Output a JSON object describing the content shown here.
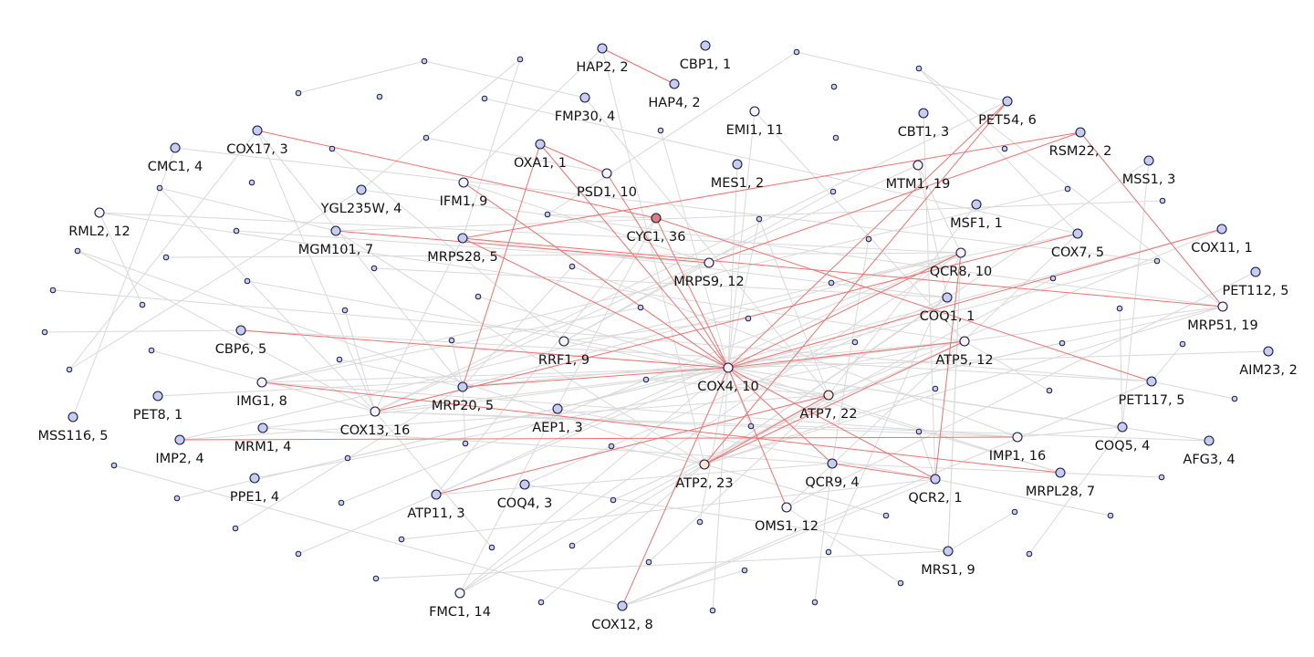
{
  "colors": {
    "node_fill": "#c5cdf2",
    "node_fill_light": "#f4f3fb",
    "node_fill_peach": "#fbe6d8",
    "node_fill_hub": "#d98080",
    "node_stroke": "#1a1a3a",
    "edge_highlight": "#f07070",
    "edge_default": "#d9d9d9"
  },
  "nodes": [
    {
      "id": "HAP2",
      "label": "HAP2, 2",
      "fill": "node_fill"
    },
    {
      "id": "CBP1",
      "label": "CBP1, 1",
      "fill": "node_fill"
    },
    {
      "id": "HAP4",
      "label": "HAP4, 2",
      "fill": "node_fill"
    },
    {
      "id": "FMP30",
      "label": "FMP30, 4",
      "fill": "node_fill"
    },
    {
      "id": "EMI1",
      "label": "EMI1, 11",
      "fill": "node_fill_light"
    },
    {
      "id": "CBT1",
      "label": "CBT1, 3",
      "fill": "node_fill"
    },
    {
      "id": "PET54",
      "label": "PET54, 6",
      "fill": "node_fill"
    },
    {
      "id": "COX17",
      "label": "COX17, 3",
      "fill": "node_fill"
    },
    {
      "id": "CMC1",
      "label": "CMC1, 4",
      "fill": "node_fill"
    },
    {
      "id": "OXA1",
      "label": "OXA1, 1",
      "fill": "node_fill"
    },
    {
      "id": "RSM22",
      "label": "RSM22, 2",
      "fill": "node_fill"
    },
    {
      "id": "MSS1",
      "label": "MSS1, 3",
      "fill": "node_fill"
    },
    {
      "id": "MES1",
      "label": "MES1, 2",
      "fill": "node_fill"
    },
    {
      "id": "MTM1",
      "label": "MTM1, 19",
      "fill": "node_fill_light"
    },
    {
      "id": "PSD1",
      "label": "PSD1, 10",
      "fill": "node_fill_light"
    },
    {
      "id": "YGL235W",
      "label": "YGL235W, 4",
      "fill": "node_fill"
    },
    {
      "id": "IFM1",
      "label": "IFM1, 9",
      "fill": "node_fill_light"
    },
    {
      "id": "RML2",
      "label": "RML2, 12",
      "fill": "node_fill_light"
    },
    {
      "id": "MSF1",
      "label": "MSF1, 1",
      "fill": "node_fill"
    },
    {
      "id": "CYC1",
      "label": "CYC1, 36",
      "fill": "node_fill_hub"
    },
    {
      "id": "MGM101",
      "label": "MGM101, 7",
      "fill": "node_fill"
    },
    {
      "id": "MRPS28",
      "label": "MRPS28, 5",
      "fill": "node_fill"
    },
    {
      "id": "COX7",
      "label": "COX7, 5",
      "fill": "node_fill"
    },
    {
      "id": "COX11",
      "label": "COX11, 1",
      "fill": "node_fill"
    },
    {
      "id": "QCR8",
      "label": "QCR8, 10",
      "fill": "node_fill_light"
    },
    {
      "id": "MRPS9",
      "label": "MRPS9, 12",
      "fill": "node_fill_light"
    },
    {
      "id": "PET112",
      "label": "PET112, 5",
      "fill": "node_fill"
    },
    {
      "id": "COQ1",
      "label": "COQ1, 1",
      "fill": "node_fill"
    },
    {
      "id": "MRP51",
      "label": "MRP51, 19",
      "fill": "node_fill_light"
    },
    {
      "id": "CBP6",
      "label": "CBP6, 5",
      "fill": "node_fill"
    },
    {
      "id": "RRF1",
      "label": "RRF1, 9",
      "fill": "node_fill_light"
    },
    {
      "id": "ATP5",
      "label": "ATP5, 12",
      "fill": "node_fill_light"
    },
    {
      "id": "AIM23",
      "label": "AIM23, 2",
      "fill": "node_fill"
    },
    {
      "id": "COX4",
      "label": "COX4, 10",
      "fill": "node_fill_light"
    },
    {
      "id": "IMG1",
      "label": "IMG1, 8",
      "fill": "node_fill_light"
    },
    {
      "id": "PET117",
      "label": "PET117, 5",
      "fill": "node_fill"
    },
    {
      "id": "PET8",
      "label": "PET8, 1",
      "fill": "node_fill"
    },
    {
      "id": "MRP20",
      "label": "MRP20, 5",
      "fill": "node_fill"
    },
    {
      "id": "ATP7",
      "label": "ATP7, 22",
      "fill": "node_fill_peach"
    },
    {
      "id": "COX13",
      "label": "COX13, 16",
      "fill": "node_fill_light"
    },
    {
      "id": "AEP1",
      "label": "AEP1, 3",
      "fill": "node_fill"
    },
    {
      "id": "MSS116",
      "label": "MSS116, 5",
      "fill": "node_fill"
    },
    {
      "id": "IMP1",
      "label": "IMP1, 16",
      "fill": "node_fill_light"
    },
    {
      "id": "COQ5",
      "label": "COQ5, 4",
      "fill": "node_fill"
    },
    {
      "id": "AFG3",
      "label": "AFG3, 4",
      "fill": "node_fill"
    },
    {
      "id": "IMP2",
      "label": "IMP2, 4",
      "fill": "node_fill"
    },
    {
      "id": "MRM1",
      "label": "MRM1, 4",
      "fill": "node_fill"
    },
    {
      "id": "QCR9",
      "label": "QCR9, 4",
      "fill": "node_fill"
    },
    {
      "id": "ATP2",
      "label": "ATP2, 23",
      "fill": "node_fill_peach"
    },
    {
      "id": "MRPL28",
      "label": "MRPL28, 7",
      "fill": "node_fill"
    },
    {
      "id": "PPE1",
      "label": "PPE1, 4",
      "fill": "node_fill"
    },
    {
      "id": "QCR2",
      "label": "QCR2, 1",
      "fill": "node_fill"
    },
    {
      "id": "ATP11",
      "label": "ATP11, 3",
      "fill": "node_fill"
    },
    {
      "id": "COQ4",
      "label": "COQ4, 3",
      "fill": "node_fill"
    },
    {
      "id": "OMS1",
      "label": "OMS1, 12",
      "fill": "node_fill_light"
    },
    {
      "id": "MRS1",
      "label": "MRS1, 9",
      "fill": "node_fill"
    },
    {
      "id": "FMC1",
      "label": "FMC1, 14",
      "fill": "node_fill_light"
    },
    {
      "id": "COX12",
      "label": "COX12, 8",
      "fill": "node_fill"
    }
  ],
  "highlight_edges": [
    [
      "HAP2",
      "HAP4"
    ],
    [
      "COX17",
      "CYC1"
    ],
    [
      "OXA1",
      "COX4"
    ],
    [
      "OXA1",
      "MRP20"
    ],
    [
      "PSD1",
      "COX4"
    ],
    [
      "PSD1",
      "OXA1"
    ],
    [
      "IFM1",
      "COX4"
    ],
    [
      "CYC1",
      "COX4"
    ],
    [
      "CYC1",
      "PET117"
    ],
    [
      "MGM101",
      "MRPS9"
    ],
    [
      "MRPS28",
      "MRP51"
    ],
    [
      "MRPS28",
      "COX4"
    ],
    [
      "RSM22",
      "MRPS9"
    ],
    [
      "RSM22",
      "MRPS28"
    ],
    [
      "RSM22",
      "MRP51"
    ],
    [
      "PET54",
      "COX4"
    ],
    [
      "PET54",
      "ATP2"
    ],
    [
      "COX7",
      "COX13"
    ],
    [
      "COX11",
      "COX4"
    ],
    [
      "QCR8",
      "COX4"
    ],
    [
      "QCR8",
      "QCR2"
    ],
    [
      "CBP6",
      "COX4"
    ],
    [
      "IMG1",
      "MRPL28"
    ],
    [
      "IMP2",
      "IMP1"
    ],
    [
      "COX4",
      "MRP20"
    ],
    [
      "COX4",
      "QCR9"
    ],
    [
      "COX4",
      "OMS1"
    ],
    [
      "COX4",
      "QCR2"
    ],
    [
      "COX4",
      "COX12"
    ],
    [
      "ATP5",
      "ATP2"
    ],
    [
      "ATP5",
      "COX4"
    ],
    [
      "ATP7",
      "ATP2"
    ],
    [
      "ATP11",
      "ATP7"
    ],
    [
      "QCR9",
      "QCR2"
    ]
  ]
}
